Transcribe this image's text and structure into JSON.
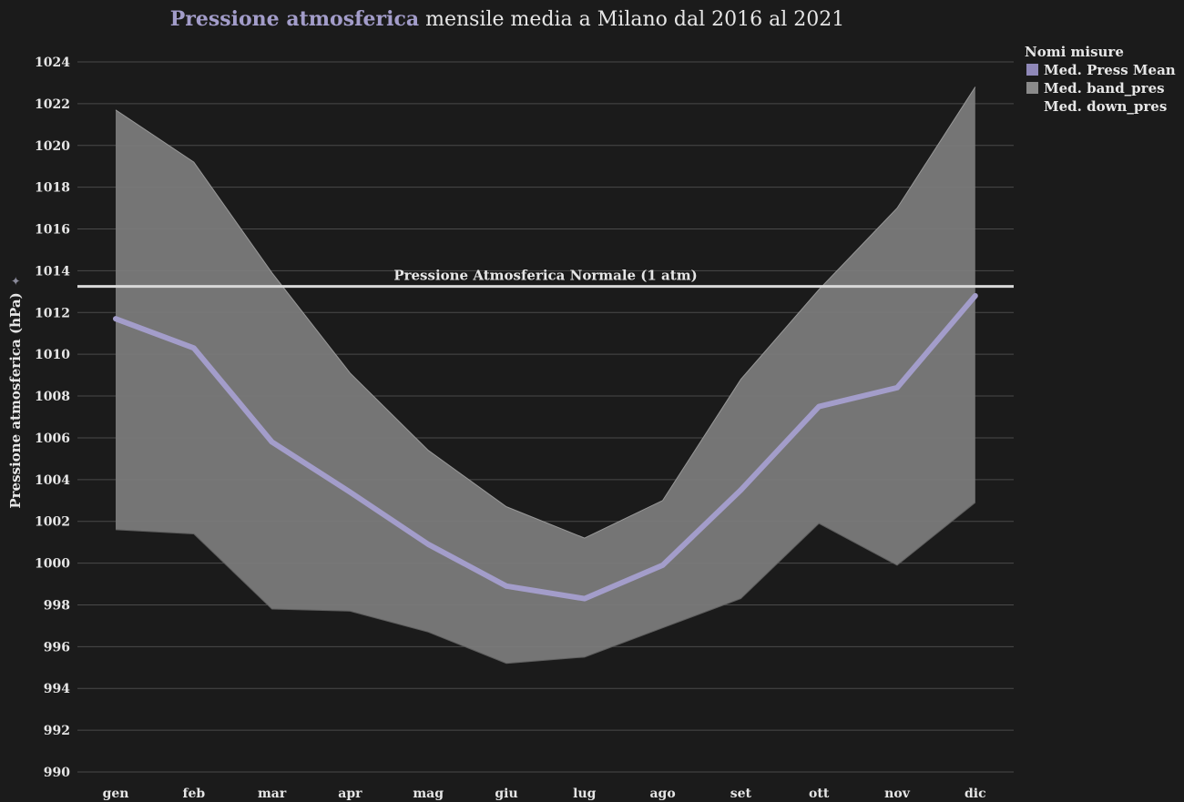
{
  "chart_data": {
    "type": "line",
    "title_highlight": "Pressione atmosferica",
    "title_rest": " mensile media a Milano dal 2016 al 2021",
    "ylabel": "Pressione atmosferica (hPa)",
    "xlabel": "",
    "categories": [
      "gen",
      "feb",
      "mar",
      "apr",
      "mag",
      "giu",
      "lug",
      "ago",
      "set",
      "ott",
      "nov",
      "dic"
    ],
    "ylim": [
      990,
      1024
    ],
    "yticks": [
      990,
      992,
      994,
      996,
      998,
      1000,
      1002,
      1004,
      1006,
      1008,
      1010,
      1012,
      1014,
      1016,
      1018,
      1020,
      1022,
      1024
    ],
    "grid": true,
    "legend": {
      "title": "Nomi misure",
      "position": "top-right",
      "items": [
        {
          "label": "Med. Press Mean",
          "color": "#8f88b8"
        },
        {
          "label": "Med. band_pres",
          "color": "#8a8a8a"
        },
        {
          "label": "Med. down_pres",
          "color": null
        }
      ]
    },
    "series": [
      {
        "name": "Med. Press Mean",
        "color": "#a39dca",
        "values": [
          1011.7,
          1010.3,
          1005.8,
          1003.4,
          1000.9,
          998.9,
          998.3,
          999.9,
          1003.5,
          1007.5,
          1008.4,
          1012.8
        ]
      },
      {
        "name": "Med. band_pres",
        "color": "#7a7a7a",
        "values": [
          1021.7,
          1019.2,
          1013.9,
          1009.1,
          1005.4,
          1002.7,
          1001.2,
          1003.0,
          1008.8,
          1013.1,
          1017.0,
          1022.8
        ]
      },
      {
        "name": "Med. down_pres",
        "values": [
          1001.6,
          1001.4,
          997.8,
          997.7,
          996.7,
          995.2,
          995.5,
          996.9,
          998.3,
          1001.9,
          999.9,
          1002.9
        ]
      }
    ],
    "reference_line": {
      "label": "Pressione Atmosferica Normale (1 atm)",
      "value": 1013.25,
      "color": "#d8d8d8"
    }
  }
}
